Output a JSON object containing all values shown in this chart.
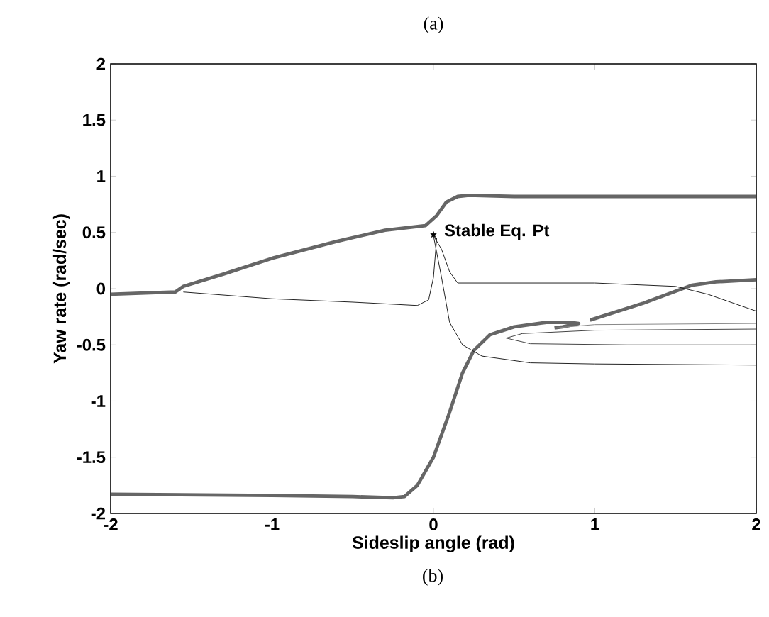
{
  "chart_data": {
    "type": "line",
    "title": "(a)",
    "xlabel": "Sideslip angle (rad)",
    "ylabel": "Yaw rate (rad/sec)",
    "xlim": [
      -2,
      2
    ],
    "ylim": [
      -2,
      2
    ],
    "xticks": [
      -2,
      -1,
      0,
      1,
      2
    ],
    "yticks": [
      -2,
      -1.5,
      -1,
      -0.5,
      0,
      0.5,
      1,
      1.5,
      2
    ],
    "grid": false,
    "annotations": [
      {
        "text": "Stable Eq. Pt",
        "x": 0,
        "y": 0.48
      },
      "(b)"
    ],
    "series": [
      {
        "color": "#666666",
        "x": [
          2,
          1,
          0.5,
          0.22,
          0.15,
          0.08,
          0.02,
          -0.05,
          -0.3,
          -0.6,
          -1.0,
          -1.3,
          -1.55,
          -1.6,
          -2
        ],
        "values": [
          0.82,
          0.82,
          0.82,
          0.83,
          0.82,
          0.77,
          0.65,
          0.56,
          0.52,
          0.42,
          0.27,
          0.13,
          0.02,
          -0.03,
          -0.05
        ]
      },
      {
        "color": "#666666",
        "x": [
          -2,
          -1,
          -0.5,
          -0.25,
          -0.18,
          -0.1,
          0,
          0.1,
          0.18,
          0.25,
          0.35,
          0.5,
          0.7,
          0.85,
          0.9,
          0.8,
          0.75
        ],
        "values": [
          -1.83,
          -1.84,
          -1.85,
          -1.86,
          -1.85,
          -1.75,
          -1.5,
          -1.1,
          -0.75,
          -0.55,
          -0.41,
          -0.34,
          -0.3,
          -0.3,
          -0.31,
          -0.34,
          -0.35
        ]
      },
      {
        "color": "#666666",
        "x": [
          0.97,
          1.3,
          1.6,
          1.75,
          2
        ],
        "values": [
          -0.28,
          -0.13,
          0.03,
          0.06,
          0.08
        ]
      },
      {
        "color": "#222222",
        "x": [
          -1.55,
          -1.0,
          -0.5,
          -0.1,
          -0.03,
          0.0,
          0.02
        ],
        "values": [
          -0.03,
          -0.09,
          -0.12,
          -0.15,
          -0.1,
          0.1,
          0.45
        ]
      },
      {
        "color": "#222222",
        "x": [
          0.0,
          0.05,
          0.1,
          0.15,
          0.2,
          1,
          1.5,
          1.7,
          2
        ],
        "values": [
          0.47,
          0.35,
          0.15,
          0.05,
          0.05,
          0.05,
          0.02,
          -0.05,
          -0.2
        ]
      },
      {
        "color": "#222222",
        "x": [
          0.0,
          0.05,
          0.1,
          0.18,
          0.3,
          0.6,
          1,
          2
        ],
        "values": [
          0.47,
          0.1,
          -0.3,
          -0.5,
          -0.6,
          -0.66,
          -0.67,
          -0.68
        ]
      },
      {
        "color": "#444444",
        "x": [
          2,
          1.2,
          0.6,
          0.45,
          0.55,
          1,
          2
        ],
        "values": [
          -0.5,
          -0.5,
          -0.49,
          -0.44,
          -0.4,
          -0.37,
          -0.36
        ]
      },
      {
        "color": "#888888",
        "x": [
          2,
          1,
          0.75
        ],
        "values": [
          -0.31,
          -0.32,
          -0.35
        ]
      },
      {
        "type": "scatter",
        "marker": "star",
        "color": "#000000",
        "x": [
          0
        ],
        "values": [
          0.48
        ]
      }
    ]
  }
}
